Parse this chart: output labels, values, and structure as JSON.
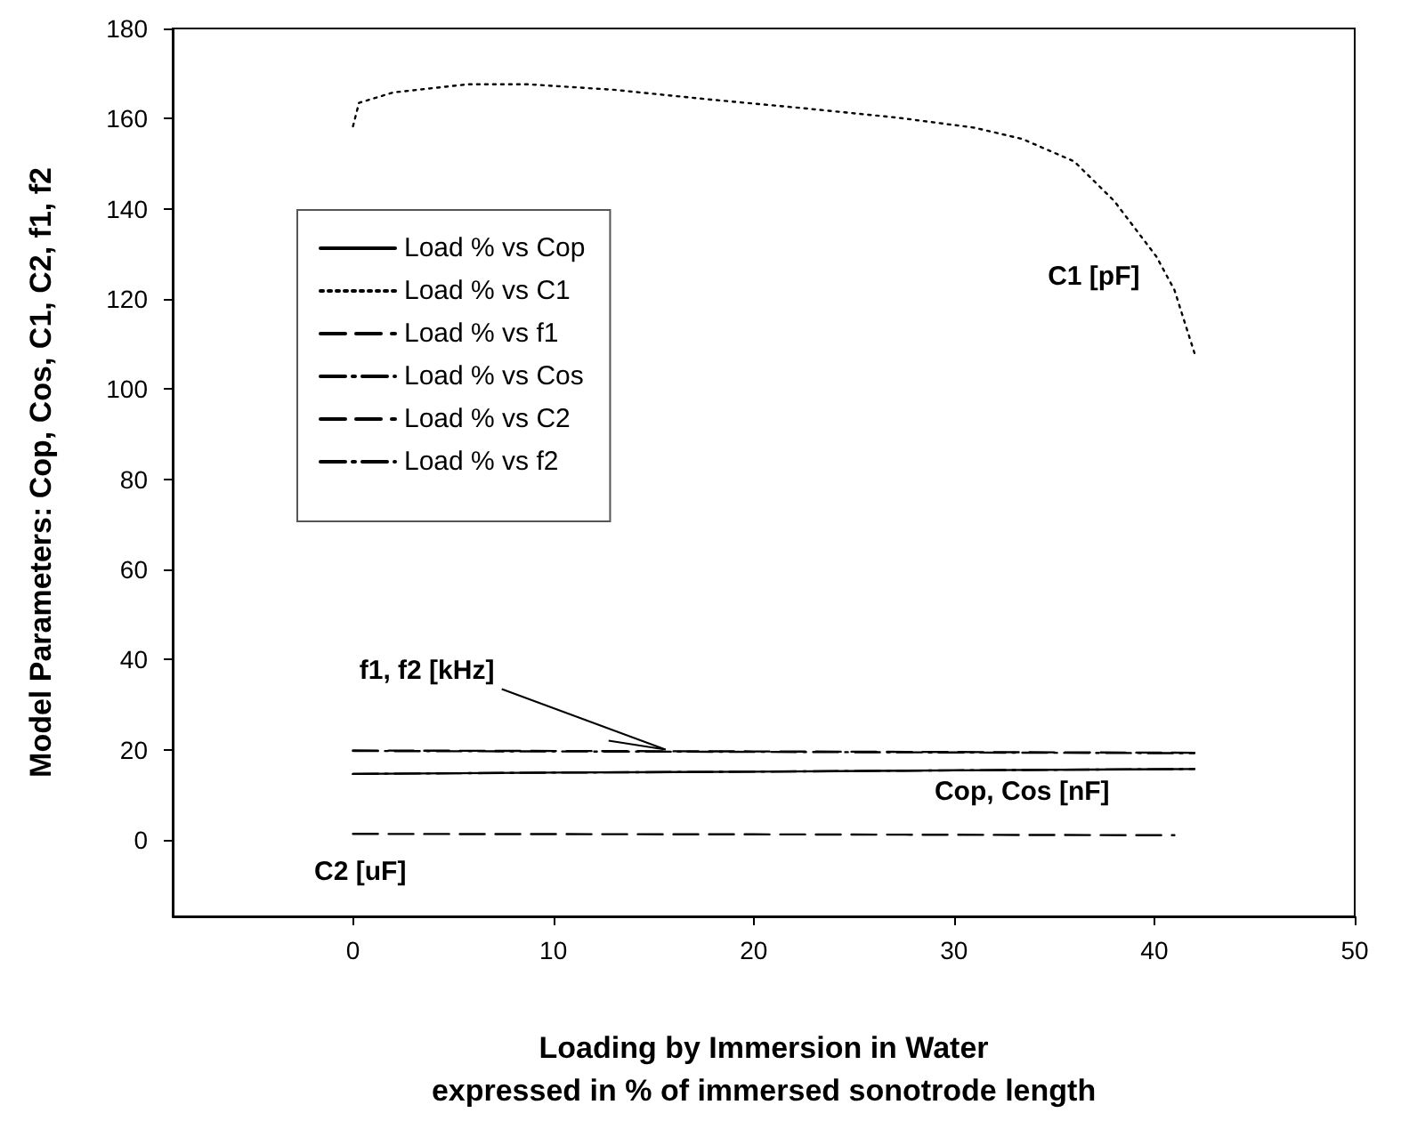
{
  "chart_data": {
    "type": "line",
    "xlabel": "Loading by Immersion in Water\nexpressed in % of immersed sonotrode length",
    "ylabel": "Model Parameters: Cop, Cos, C1, C2, f1, f2",
    "xlim": [
      -9,
      50
    ],
    "xticks": [
      0,
      10,
      20,
      30,
      40,
      50
    ],
    "ylim": [
      -17,
      180
    ],
    "yticks": [
      0,
      20,
      40,
      60,
      80,
      100,
      120,
      140,
      160,
      180
    ],
    "grid": false,
    "legend": "top left",
    "marker": "none",
    "series": [
      {
        "name": "Load % vs Cop",
        "color": "#000000",
        "line_style": "solid",
        "x": [
          0,
          10,
          20,
          30,
          42
        ],
        "values": [
          14.6,
          14.9,
          15.1,
          15.4,
          15.7
        ]
      },
      {
        "name": "Load % vs C1",
        "color": "#000000",
        "line_style": "dotted",
        "x": [
          0,
          0.3,
          2,
          5.7,
          8.8,
          13,
          17.9,
          22.5,
          27.2,
          31,
          33.4,
          36,
          38,
          40.1,
          41,
          42
        ],
        "values": [
          158.3,
          163.5,
          165.8,
          167.6,
          167.6,
          166.4,
          164.2,
          162.3,
          160.2,
          158,
          155.5,
          150.5,
          141.7,
          129.4,
          122,
          108
        ]
      },
      {
        "name": "Load % vs f1",
        "color": "#000000",
        "line_style": "dashed",
        "x": [
          0,
          20,
          42
        ],
        "values": [
          19.8,
          19.6,
          19.3
        ]
      },
      {
        "name": "Load % vs Cos",
        "color": "#000000",
        "line_style": "dashdot",
        "x": [
          0,
          10,
          20,
          30,
          42
        ],
        "values": [
          14.6,
          14.9,
          15.1,
          15.4,
          15.7
        ]
      },
      {
        "name": "Load % vs C2",
        "color": "#000000",
        "line_style": "dashed",
        "x": [
          0,
          20,
          41
        ],
        "values": [
          1.3,
          1.2,
          1.0
        ]
      },
      {
        "name": "Load % vs f2",
        "color": "#000000",
        "line_style": "dashdot",
        "x": [
          0,
          20,
          42
        ],
        "values": [
          19.7,
          19.5,
          19.2
        ]
      }
    ],
    "annotations": [
      {
        "text": "C1 [pF]",
        "x": 40.1,
        "y": 129.4
      },
      {
        "text": "f1, f2 [kHz]",
        "x": 15.6,
        "y": 20
      },
      {
        "text": "Cop, Cos [nF]",
        "x": 38,
        "y": 15.5
      },
      {
        "text": "C2 [uF]",
        "x": 1,
        "y": 1.3
      }
    ]
  }
}
